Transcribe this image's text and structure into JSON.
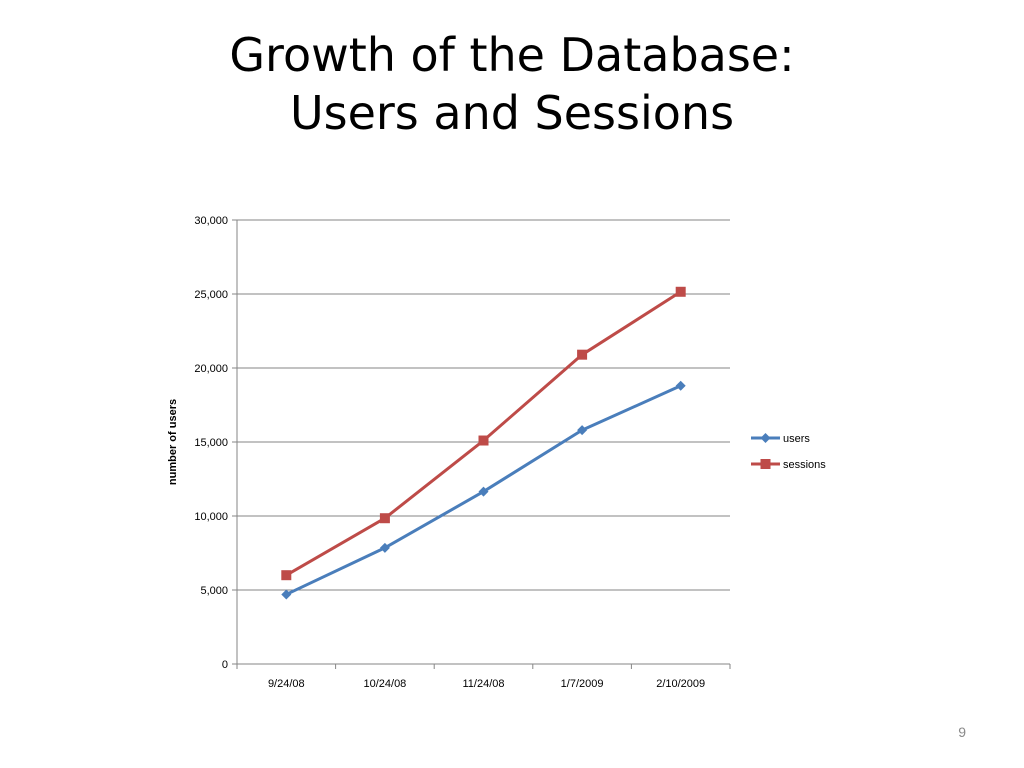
{
  "slide": {
    "title_line1": "Growth of the Database:",
    "title_line2": "Users and Sessions",
    "page_number": "9"
  },
  "chart_data": {
    "type": "line",
    "title": "",
    "xlabel": "",
    "ylabel": "number of users",
    "categories": [
      "9/24/08",
      "10/24/08",
      "11/24/08",
      "1/7/2009",
      "2/10/2009"
    ],
    "ylim": [
      0,
      30000
    ],
    "yticks": [
      0,
      5000,
      10000,
      15000,
      20000,
      25000,
      30000
    ],
    "ytick_labels": [
      "0",
      "5,000",
      "10,000",
      "15,000",
      "20,000",
      "25,000",
      "30,000"
    ],
    "grid": "horizontal",
    "legend_position": "right",
    "series": [
      {
        "name": "users",
        "values": [
          4700,
          7850,
          11650,
          15800,
          18800
        ],
        "color": "#4a7ebb",
        "marker": "diamond"
      },
      {
        "name": "sessions",
        "values": [
          6000,
          9850,
          15100,
          20900,
          25150
        ],
        "color": "#be4b48",
        "marker": "square"
      }
    ]
  }
}
